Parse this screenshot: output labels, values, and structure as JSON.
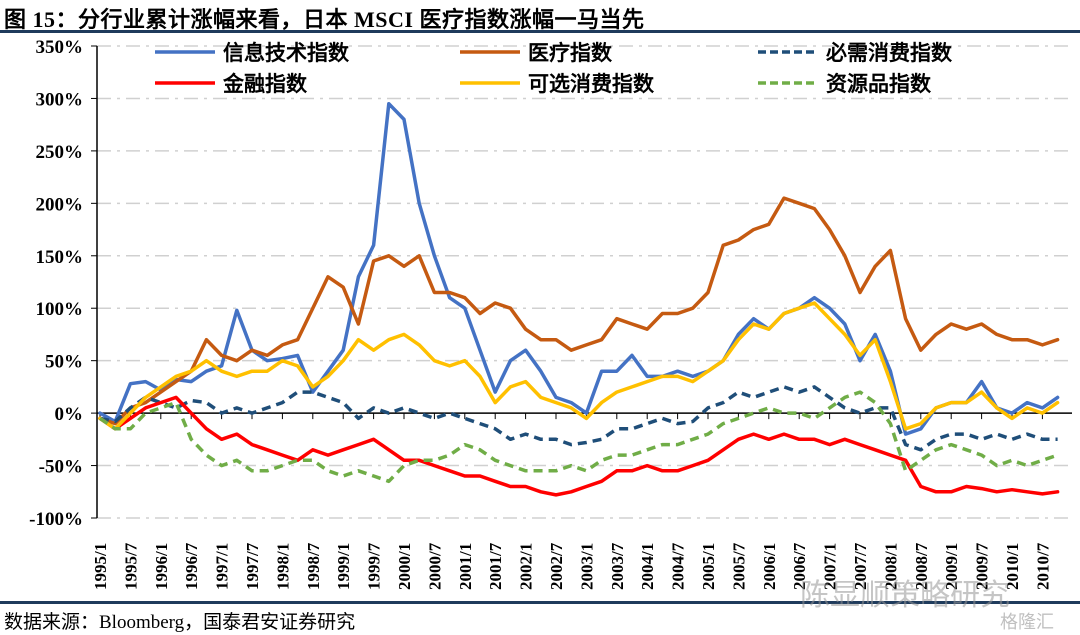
{
  "figure": {
    "title": "图 15：分行业累计涨幅来看，日本 MSCI 医疗指数涨幅一马当先",
    "source": "数据来源：Bloomberg，国泰君安证券研究",
    "watermark": "陈显顺策略研究",
    "watermark2": "格隆汇"
  },
  "chart_data": {
    "type": "line",
    "title": "分行业累计涨幅来看，日本 MSCI 医疗指数涨幅一马当先",
    "xlabel": "",
    "ylabel": "",
    "ylim": [
      -100,
      350
    ],
    "yticks": [
      -100,
      -50,
      0,
      50,
      100,
      150,
      200,
      250,
      300,
      350
    ],
    "ytick_labels": [
      "-100%",
      "-50%",
      "0%",
      "50%",
      "100%",
      "150%",
      "200%",
      "250%",
      "300%",
      "350%"
    ],
    "xtick_labels": [
      "1995/1",
      "1995/7",
      "1996/1",
      "1996/7",
      "1997/1",
      "1997/7",
      "1998/1",
      "1998/7",
      "1999/1",
      "1999/7",
      "2000/1",
      "2000/7",
      "2001/1",
      "2001/7",
      "2002/1",
      "2002/7",
      "2003/1",
      "2003/7",
      "2004/1",
      "2004/7",
      "2005/1",
      "2005/7",
      "2006/1",
      "2006/7",
      "2007/1",
      "2007/7",
      "2008/1",
      "2008/7",
      "2009/1",
      "2009/7",
      "2010/1",
      "2010/7"
    ],
    "x_start": "1995/1",
    "x_step_months": 3,
    "grid": "horizontal dash-dot",
    "legend_position": "top",
    "series": [
      {
        "name": "信息技术指数",
        "color": "#4472c4",
        "style": "solid",
        "values": [
          0,
          -8,
          28,
          30,
          22,
          32,
          30,
          40,
          45,
          98,
          60,
          50,
          52,
          55,
          20,
          40,
          60,
          130,
          160,
          295,
          280,
          200,
          150,
          110,
          100,
          60,
          20,
          50,
          60,
          40,
          15,
          10,
          0,
          40,
          40,
          55,
          35,
          35,
          40,
          35,
          40,
          50,
          75,
          90,
          80,
          95,
          100,
          110,
          100,
          85,
          50,
          75,
          40,
          -20,
          -15,
          5,
          10,
          10,
          30,
          5,
          0,
          10,
          5,
          15
        ]
      },
      {
        "name": "医疗指数",
        "color": "#c55a11",
        "style": "solid",
        "values": [
          -5,
          -10,
          5,
          10,
          20,
          30,
          40,
          70,
          55,
          50,
          60,
          55,
          65,
          70,
          100,
          130,
          120,
          85,
          145,
          150,
          140,
          150,
          115,
          115,
          110,
          95,
          105,
          100,
          80,
          70,
          70,
          60,
          65,
          70,
          90,
          85,
          80,
          95,
          95,
          100,
          115,
          160,
          165,
          175,
          180,
          205,
          200,
          195,
          175,
          150,
          115,
          140,
          155,
          90,
          60,
          75,
          85,
          80,
          85,
          75,
          70,
          70,
          65,
          70
        ]
      },
      {
        "name": "必需消费指数",
        "color": "#1f4e79",
        "style": "dashed",
        "values": [
          -5,
          -8,
          5,
          15,
          10,
          5,
          12,
          10,
          0,
          5,
          0,
          5,
          10,
          20,
          20,
          15,
          10,
          -5,
          5,
          0,
          5,
          0,
          -5,
          0,
          -5,
          -10,
          -15,
          -25,
          -20,
          -25,
          -25,
          -30,
          -28,
          -25,
          -15,
          -15,
          -10,
          -5,
          -10,
          -8,
          5,
          10,
          20,
          15,
          20,
          25,
          20,
          25,
          15,
          5,
          0,
          5,
          5,
          -30,
          -35,
          -25,
          -20,
          -20,
          -25,
          -20,
          -25,
          -20,
          -25,
          -25
        ]
      },
      {
        "name": "金融指数",
        "color": "#ff0000",
        "style": "solid",
        "values": [
          -5,
          -15,
          -5,
          5,
          10,
          15,
          0,
          -15,
          -25,
          -20,
          -30,
          -35,
          -40,
          -45,
          -35,
          -40,
          -35,
          -30,
          -25,
          -35,
          -45,
          -45,
          -50,
          -55,
          -60,
          -60,
          -65,
          -70,
          -70,
          -75,
          -78,
          -75,
          -70,
          -65,
          -55,
          -55,
          -50,
          -55,
          -55,
          -50,
          -45,
          -35,
          -25,
          -20,
          -25,
          -20,
          -25,
          -25,
          -30,
          -25,
          -30,
          -35,
          -40,
          -45,
          -70,
          -75,
          -75,
          -70,
          -72,
          -75,
          -73,
          -75,
          -77,
          -75
        ]
      },
      {
        "name": "可选消费指数",
        "color": "#ffc000",
        "style": "solid",
        "values": [
          -5,
          -15,
          0,
          15,
          25,
          35,
          40,
          50,
          40,
          35,
          40,
          40,
          50,
          45,
          25,
          35,
          50,
          70,
          60,
          70,
          75,
          65,
          50,
          45,
          50,
          35,
          10,
          25,
          30,
          15,
          10,
          5,
          -5,
          10,
          20,
          25,
          30,
          35,
          35,
          30,
          40,
          50,
          70,
          85,
          80,
          95,
          100,
          105,
          90,
          75,
          55,
          70,
          30,
          -15,
          -10,
          5,
          10,
          10,
          20,
          5,
          -5,
          5,
          0,
          10
        ]
      },
      {
        "name": "资源品指数",
        "color": "#70ad47",
        "style": "dashed",
        "values": [
          -5,
          -15,
          -15,
          0,
          5,
          10,
          -25,
          -40,
          -50,
          -45,
          -55,
          -55,
          -50,
          -45,
          -45,
          -55,
          -60,
          -55,
          -60,
          -65,
          -50,
          -45,
          -45,
          -40,
          -30,
          -35,
          -45,
          -50,
          -55,
          -55,
          -55,
          -50,
          -55,
          -45,
          -40,
          -40,
          -35,
          -30,
          -30,
          -25,
          -20,
          -10,
          -5,
          0,
          5,
          0,
          0,
          -5,
          5,
          15,
          20,
          10,
          -10,
          -55,
          -45,
          -35,
          -30,
          -35,
          -40,
          -50,
          -45,
          -50,
          -45,
          -40
        ]
      }
    ]
  }
}
